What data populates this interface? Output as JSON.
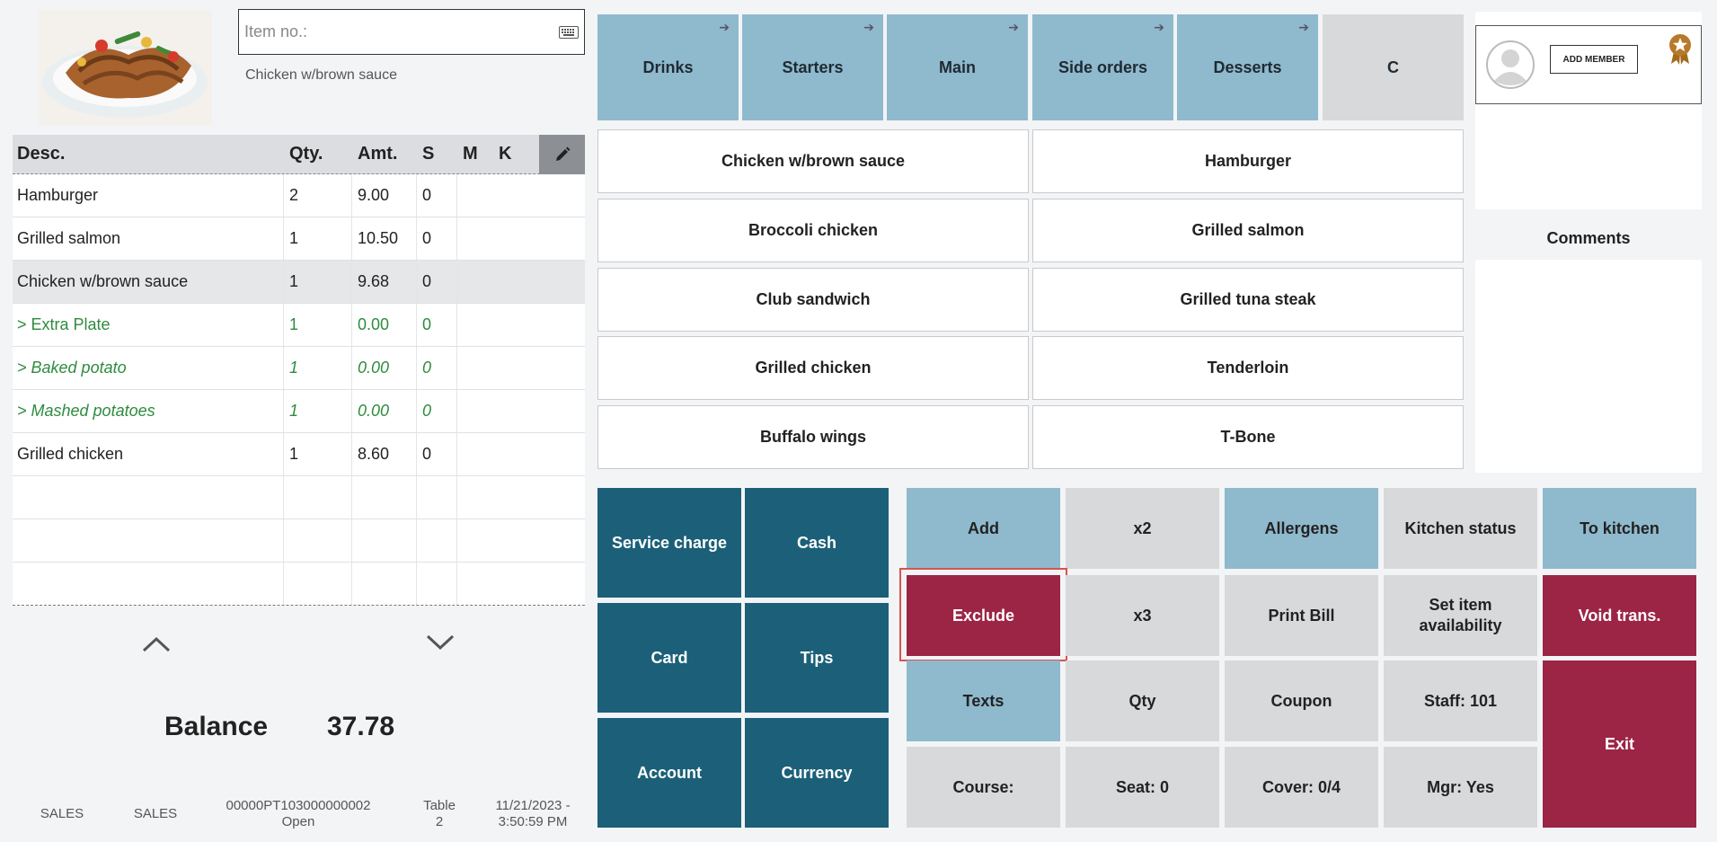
{
  "item_entry": {
    "placeholder": "Item no.:",
    "selected_item_desc": "Chicken w/brown sauce"
  },
  "order_table": {
    "headers": {
      "desc": "Desc.",
      "qty": "Qty.",
      "amt": "Amt.",
      "s": "S",
      "m": "M",
      "k": "K"
    },
    "rows": [
      {
        "desc": "Hamburger",
        "qty": "2",
        "amt": "9.00",
        "s": "0",
        "m": "",
        "k": ""
      },
      {
        "desc": "Grilled salmon",
        "qty": "1",
        "amt": "10.50",
        "s": "0",
        "m": "",
        "k": ""
      },
      {
        "desc": "Chicken w/brown sauce",
        "qty": "1",
        "amt": "9.68",
        "s": "0",
        "m": "",
        "k": ""
      },
      {
        "desc": "> Extra Plate",
        "qty": "1",
        "amt": "0.00",
        "s": "0",
        "m": "",
        "k": ""
      },
      {
        "desc": "> Baked potato",
        "qty": "1",
        "amt": "0.00",
        "s": "0",
        "m": "",
        "k": ""
      },
      {
        "desc": "> Mashed potatoes",
        "qty": "1",
        "amt": "0.00",
        "s": "0",
        "m": "",
        "k": ""
      },
      {
        "desc": "Grilled chicken",
        "qty": "1",
        "amt": "8.60",
        "s": "0",
        "m": "",
        "k": ""
      }
    ]
  },
  "balance": {
    "label": "Balance",
    "value": "37.78"
  },
  "status_bar": {
    "mode1": "SALES",
    "mode2": "SALES",
    "transaction_id": "00000PT103000000002",
    "transaction_state": "Open",
    "table_label": "Table",
    "table_number": "2",
    "date": "11/21/2023 -",
    "time": "3:50:59 PM"
  },
  "categories": [
    {
      "label": "Drinks"
    },
    {
      "label": "Starters"
    },
    {
      "label": "Main"
    },
    {
      "label": "Side orders"
    },
    {
      "label": "Desserts"
    },
    {
      "label": "C"
    }
  ],
  "menu_items": [
    "Chicken w/brown sauce",
    "Hamburger",
    "Broccoli chicken",
    "Grilled salmon",
    "Club sandwich",
    "Grilled tuna steak",
    "Grilled chicken",
    "Tenderloin",
    "Buffalo wings",
    "T-Bone"
  ],
  "member": {
    "add_label": "ADD MEMBER"
  },
  "comments": {
    "title": "Comments"
  },
  "payment": [
    "Service charge",
    "Cash",
    "Card",
    "Tips",
    "Account",
    "Currency"
  ],
  "functions": {
    "add": "Add",
    "x2": "x2",
    "allergens": "Allergens",
    "kitchen_status": "Kitchen status",
    "to_kitchen": "To kitchen",
    "exclude": "Exclude",
    "x3": "x3",
    "print_bill": "Print Bill",
    "set_availability": "Set item availability",
    "void": "Void trans.",
    "texts": "Texts",
    "qty": "Qty",
    "coupon": "Coupon",
    "staff": "Staff: 101",
    "exit": "Exit",
    "course": "Course:",
    "seat": "Seat: 0",
    "cover": "Cover: 0/4",
    "mgr": "Mgr: Yes"
  },
  "colors": {
    "category_blue": "#8fb9cd",
    "payment_teal": "#1b6078",
    "danger_red": "#9c2546",
    "modifier_green": "#2e8b3e",
    "highlight_outline": "#d9534f"
  }
}
